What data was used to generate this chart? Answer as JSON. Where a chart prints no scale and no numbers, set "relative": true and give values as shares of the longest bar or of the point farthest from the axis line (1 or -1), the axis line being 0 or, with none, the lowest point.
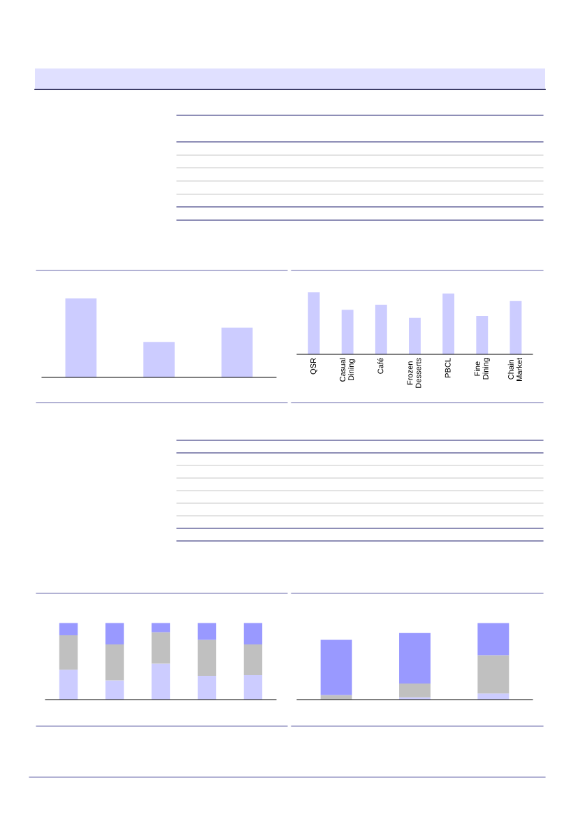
{
  "chart_data": [
    {
      "type": "bar",
      "relative": true,
      "categories": [
        null,
        null,
        null
      ],
      "series": [
        {
          "color": "#ccccff",
          "values": [
            1,
            0.45,
            0.63
          ]
        }
      ]
    },
    {
      "type": "bar",
      "relative": true,
      "categories": [
        "QSR",
        "Casual\nDining",
        "Café",
        "Frozen\nDesserts",
        "PBCL",
        "Fine\nDining",
        "Chain\nMarket"
      ],
      "series": [
        {
          "color": "#ccccff",
          "values": [
            1,
            0.72,
            0.8,
            0.59,
            0.98,
            0.62,
            0.86
          ]
        }
      ]
    },
    {
      "type": "bar",
      "relative": true,
      "stacked": true,
      "categories": [
        null,
        null,
        null,
        null,
        null
      ],
      "series": [
        {
          "color": "#ccccff",
          "values": [
            0.39,
            0.25,
            0.47,
            0.31,
            0.32
          ]
        },
        {
          "color": "#c0c0c0",
          "values": [
            0.45,
            0.47,
            0.41,
            0.47,
            0.4
          ]
        },
        {
          "color": "#9999ff",
          "values": [
            0.16,
            0.28,
            0.12,
            0.22,
            0.28
          ]
        }
      ]
    },
    {
      "type": "bar",
      "relative": true,
      "stacked": true,
      "categories": [
        null,
        null,
        null
      ],
      "series": [
        {
          "color": "#ccccff",
          "values": [
            null,
            0.03,
            0.08
          ]
        },
        {
          "color": "#c0c0c0",
          "values": [
            0.06,
            0.18,
            0.5
          ]
        },
        {
          "color": "#9999ff",
          "values": [
            0.72,
            0.66,
            0.42
          ]
        }
      ]
    }
  ]
}
